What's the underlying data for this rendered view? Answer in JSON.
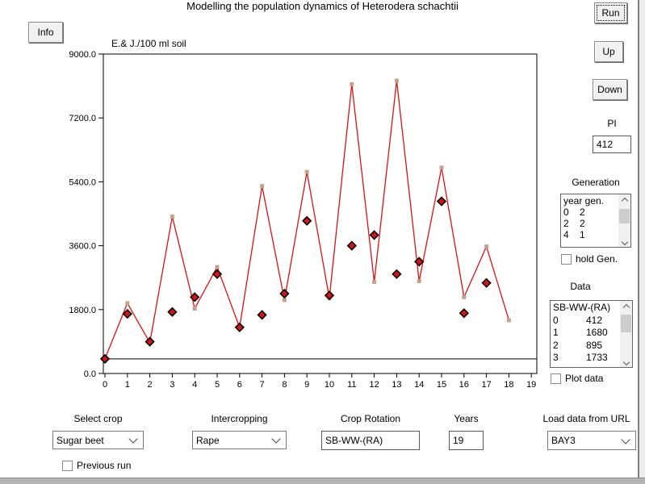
{
  "window": {
    "title": "Modelling the population dynamics of Heterodera schachtii"
  },
  "buttons": {
    "info": "Info",
    "run": "Run",
    "up": "Up",
    "down": "Down"
  },
  "pi": {
    "label": "PI",
    "value": "412"
  },
  "generation": {
    "label": "Generation",
    "header": "year gen.",
    "rows": [
      [
        "0",
        "2"
      ],
      [
        "2",
        "2"
      ],
      [
        "4",
        "1"
      ]
    ],
    "hold_label": "hold Gen."
  },
  "data_panel": {
    "label": "Data",
    "header": "SB-WW-(RA)",
    "rows": [
      [
        "0",
        "412"
      ],
      [
        "1",
        "1680"
      ],
      [
        "2",
        "895"
      ],
      [
        "3",
        "1733"
      ]
    ],
    "plot_label": "Plot data"
  },
  "bottom": {
    "select_crop": {
      "label": "Select crop",
      "value": "Sugar beet"
    },
    "intercropping": {
      "label": "Intercropping",
      "value": "Rape"
    },
    "crop_rotation": {
      "label": "Crop Rotation",
      "value": "SB-WW-(RA)"
    },
    "years": {
      "label": "Years",
      "value": "19"
    },
    "load_url": {
      "label": "Load data from URL",
      "value": "BAY3"
    },
    "previous_run_label": "Previous run"
  },
  "colors": {
    "line": "#dd1111",
    "diamond_fill": "#dd1111",
    "diamond_stroke": "#000000",
    "vertex_marker": "#bda78c",
    "axis": "#000000"
  },
  "chart_data": {
    "type": "line",
    "ylabel": "E.& J./100 ml soil",
    "ylim": [
      0,
      9000
    ],
    "yticks": [
      0,
      1800,
      3600,
      5400,
      7200,
      9000
    ],
    "ytick_labels": [
      "0.0",
      "1800.0",
      "3600.0",
      "5400.0",
      "7200.0",
      "9000.0"
    ],
    "xlim": [
      0,
      19
    ],
    "xticks": [
      0,
      1,
      2,
      3,
      4,
      5,
      6,
      7,
      8,
      9,
      10,
      11,
      12,
      13,
      14,
      15,
      16,
      17,
      18,
      19
    ],
    "threshold_line": 412,
    "grid": false,
    "legend": "none",
    "series": [
      {
        "name": "simulated population (line with generation vertices)",
        "kind": "line",
        "x": [
          0,
          1,
          2,
          3,
          4,
          5,
          6,
          7,
          8,
          9,
          10,
          11,
          12,
          13,
          14,
          15,
          16,
          17,
          18
        ],
        "values": [
          412,
          1980,
          870,
          4420,
          1830,
          3000,
          1300,
          5280,
          2070,
          5680,
          2120,
          8150,
          2580,
          8250,
          2600,
          5800,
          2150,
          3580,
          1500
        ]
      },
      {
        "name": "end-of-season population (diamonds)",
        "kind": "scatter",
        "x": [
          0,
          1,
          2,
          3,
          4,
          5,
          6,
          7,
          8,
          9,
          10,
          11,
          12,
          13,
          14,
          15,
          16,
          17
        ],
        "values": [
          412,
          1680,
          895,
          1733,
          2150,
          2800,
          1300,
          1650,
          2250,
          4300,
          2200,
          3600,
          3900,
          2800,
          3150,
          4850,
          1700,
          2550
        ]
      }
    ]
  }
}
